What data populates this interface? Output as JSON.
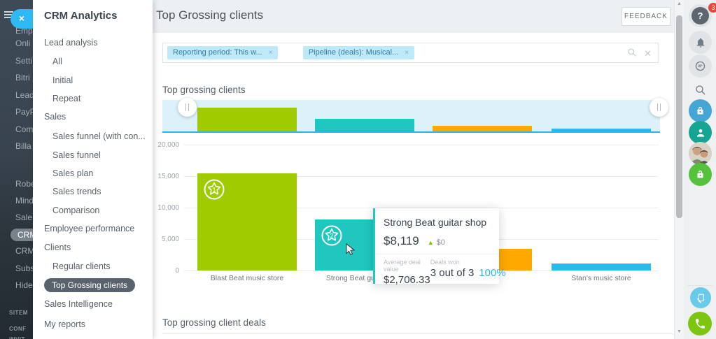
{
  "header": {
    "app_title": "CRM Analytics",
    "page_title": "Top Grossing clients",
    "feedback_label": "FEEDBACK"
  },
  "dark_rail": {
    "items": [
      "Emp",
      "Onli",
      "Setti",
      "Bitri",
      "Lead",
      "PayP",
      "Com",
      "Billa",
      "Robe",
      "Mind",
      "Sale",
      "CRM",
      "CRM",
      "Subs",
      "Hide"
    ],
    "active_index": 11,
    "footer_items": [
      "SITEM",
      "CONF",
      "INVIT"
    ]
  },
  "menu": {
    "title": "CRM Analytics",
    "items": [
      {
        "label": "Lead analysis",
        "level": 0,
        "active": false
      },
      {
        "label": "All",
        "level": 1,
        "active": false
      },
      {
        "label": "Initial",
        "level": 1,
        "active": false
      },
      {
        "label": "Repeat",
        "level": 1,
        "active": false
      },
      {
        "label": "Sales",
        "level": 0,
        "active": false
      },
      {
        "label": "Sales funnel (with con...",
        "level": 1,
        "active": false
      },
      {
        "label": "Sales funnel",
        "level": 1,
        "active": false
      },
      {
        "label": "Sales plan",
        "level": 1,
        "active": false
      },
      {
        "label": "Sales trends",
        "level": 1,
        "active": false
      },
      {
        "label": "Comparison",
        "level": 1,
        "active": false
      },
      {
        "label": "Employee performance",
        "level": 0,
        "active": false
      },
      {
        "label": "Clients",
        "level": 0,
        "active": false
      },
      {
        "label": "Regular clients",
        "level": 1,
        "active": false
      },
      {
        "label": "Top Grossing clients",
        "level": 1,
        "active": true
      },
      {
        "label": "Sales Intelligence",
        "level": 0,
        "active": false
      },
      {
        "label": "My reports",
        "level": 0,
        "active": false
      }
    ]
  },
  "filters": {
    "chips": [
      {
        "label": "Reporting period: This w...",
        "close": "×"
      },
      {
        "label": "Pipeline (deals): Musical...",
        "close": "×"
      }
    ]
  },
  "sections": {
    "chart_title": "Top grossing clients",
    "deals_title": "Top grossing client deals"
  },
  "chart_data": {
    "type": "bar",
    "title": "Top grossing clients",
    "categories": [
      "Blast Beat music store",
      "Strong Beat guitar shop",
      "",
      "Stan's music store"
    ],
    "values": [
      15400,
      8119,
      3500,
      1100
    ],
    "colors": [
      "#9fcb00",
      "#1fc7bf",
      "#ffa800",
      "#2eb9ec"
    ],
    "rank_badges": [
      1,
      2,
      null,
      null
    ],
    "ylim": [
      0,
      20000
    ],
    "yticks": [
      {
        "label": "0",
        "value": 0
      },
      {
        "label": "5,000",
        "value": 5000
      },
      {
        "label": "10,000",
        "value": 10000
      },
      {
        "label": "15,000",
        "value": 15000
      },
      {
        "label": "20,000",
        "value": 20000
      }
    ],
    "grid": true,
    "has_range_navigator": true,
    "navigator_line_color": "#2ab7ea"
  },
  "tooltip": {
    "title": "Strong Beat guitar shop",
    "value": "$8,119",
    "delta_icon": "▲",
    "delta": "$0",
    "avg_label": "Average deal value",
    "avg_value": "$2,706.33",
    "won_label": "Deals won",
    "won_value": "3 out of 3",
    "won_percent": "100%"
  },
  "right_rail": {
    "help_badge": "3",
    "icons": [
      "help-icon",
      "bell-icon",
      "support-chat-icon",
      "search-icon",
      "lock-blue-icon",
      "profile-person-icon",
      "user-avatar",
      "lock-green-icon",
      "export-report-icon",
      "call-phone-icon"
    ]
  },
  "misc": {
    "close_menu": "×",
    "hamburger": "menu",
    "accent_blue": "#2eb9f2",
    "tooltip_accent": "#21c6bf"
  }
}
